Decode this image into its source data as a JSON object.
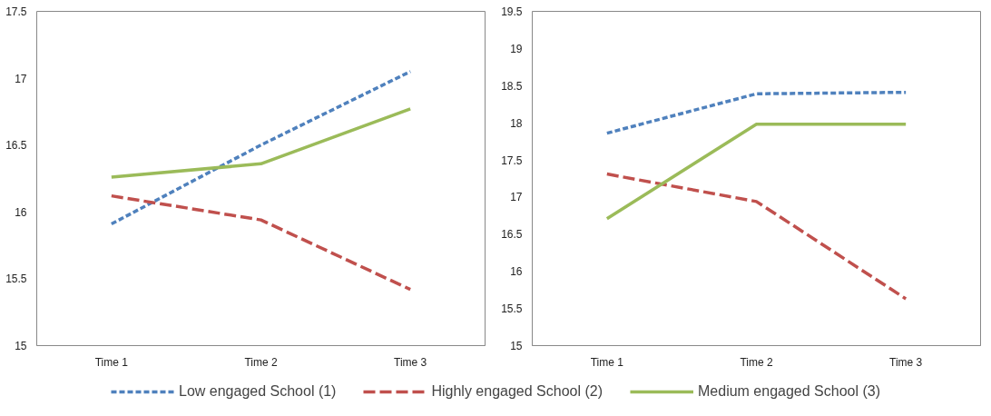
{
  "chart_data": [
    {
      "type": "line",
      "categories": [
        "Time 1",
        "Time 2",
        "Time 3"
      ],
      "ylim": [
        15,
        17.5
      ],
      "yticks": [
        15,
        15.5,
        16,
        16.5,
        17,
        17.5
      ],
      "grid": false,
      "legend": "bottom",
      "series": [
        {
          "name": "Low engaged School (1)",
          "color": "#4f81bd",
          "line_style": "dotted",
          "values": [
            15.91,
            16.5,
            17.05
          ]
        },
        {
          "name": "Highly engaged School (2)",
          "color": "#c0504d",
          "line_style": "dashed",
          "values": [
            16.12,
            15.94,
            15.42
          ]
        },
        {
          "name": "Medium engaged School (3)",
          "color": "#9bbb59",
          "line_style": "solid",
          "values": [
            16.26,
            16.36,
            16.77
          ]
        }
      ]
    },
    {
      "type": "line",
      "categories": [
        "Time 1",
        "Time 2",
        "Time 3"
      ],
      "ylim": [
        15,
        19.5
      ],
      "yticks": [
        15,
        15.5,
        16,
        16.5,
        17,
        17.5,
        18,
        18.5,
        19,
        19.5
      ],
      "grid": false,
      "legend": "bottom",
      "series": [
        {
          "name": "Low engaged School (1)",
          "color": "#4f81bd",
          "line_style": "dotted",
          "values": [
            17.86,
            18.39,
            18.41
          ]
        },
        {
          "name": "Highly engaged School (2)",
          "color": "#c0504d",
          "line_style": "dashed",
          "values": [
            17.31,
            16.94,
            15.63
          ]
        },
        {
          "name": "Medium engaged School (3)",
          "color": "#9bbb59",
          "line_style": "solid",
          "values": [
            16.71,
            17.98,
            17.98
          ]
        }
      ]
    }
  ]
}
